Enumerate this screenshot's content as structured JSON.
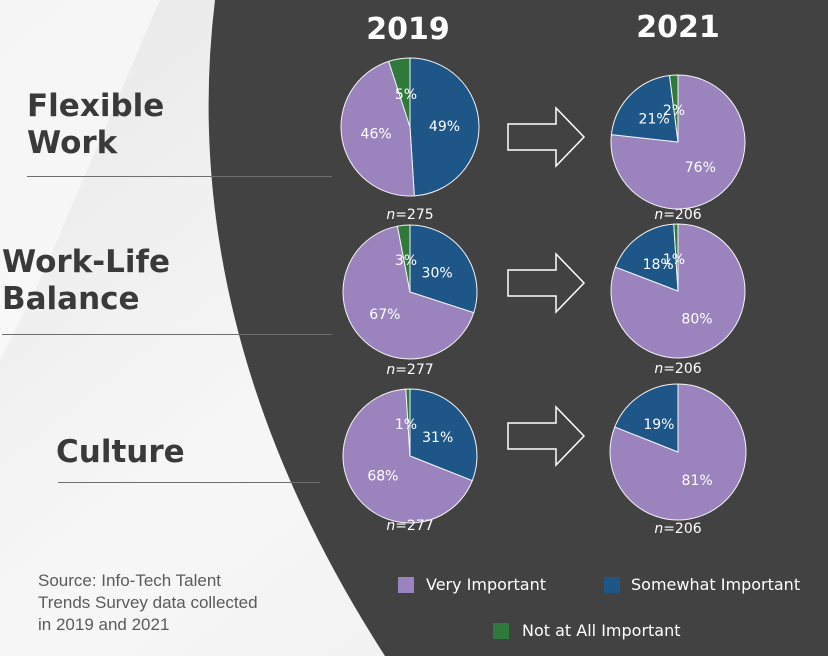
{
  "chart_data": {
    "type": "pie",
    "years": [
      "2019",
      "2021"
    ],
    "categories": [
      "Flexible Work",
      "Work-Life Balance",
      "Culture"
    ],
    "category_lines": [
      [
        "Flexible",
        "Work"
      ],
      [
        "Work-Life",
        "Balance"
      ],
      [
        "Culture"
      ]
    ],
    "series_names": [
      "Very Important",
      "Somewhat Important",
      "Not at All Important"
    ],
    "colors": {
      "Very Important": "#9b84be",
      "Somewhat Important": "#1f5688",
      "Not at All Important": "#2f7a3b"
    },
    "pies": [
      {
        "category": "Flexible Work",
        "year": "2019",
        "n": "275",
        "values": {
          "Very Important": 46,
          "Somewhat Important": 49,
          "Not at All Important": 5
        }
      },
      {
        "category": "Flexible Work",
        "year": "2021",
        "n": "206",
        "values": {
          "Very Important": 76,
          "Somewhat Important": 21,
          "Not at All Important": 2
        }
      },
      {
        "category": "Work-Life Balance",
        "year": "2019",
        "n": "277",
        "values": {
          "Very Important": 67,
          "Somewhat Important": 30,
          "Not at All Important": 3
        }
      },
      {
        "category": "Work-Life Balance",
        "year": "2021",
        "n": "206",
        "values": {
          "Very Important": 80,
          "Somewhat Important": 18,
          "Not at All Important": 1
        }
      },
      {
        "category": "Culture",
        "year": "2019",
        "n": "277",
        "values": {
          "Very Important": 68,
          "Somewhat Important": 31,
          "Not at All Important": 1
        }
      },
      {
        "category": "Culture",
        "year": "2021",
        "n": "206",
        "values": {
          "Very Important": 81,
          "Somewhat Important": 19
        }
      }
    ]
  },
  "source": [
    "Source: Info-Tech Talent",
    "Trends Survey data collected",
    "in 2019 and 2021"
  ],
  "legend": [
    {
      "label": "Very Important",
      "color": "#9b84be"
    },
    {
      "label": "Somewhat Important",
      "color": "#1f5688"
    },
    {
      "label": "Not at All Important",
      "color": "#2f7a3b"
    }
  ]
}
